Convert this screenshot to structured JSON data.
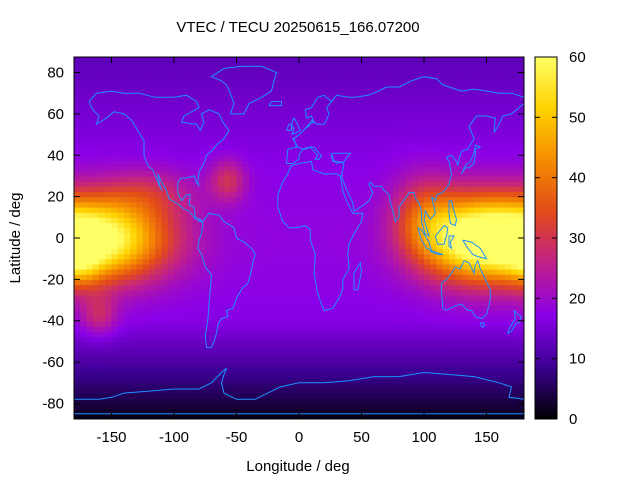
{
  "chart_data": {
    "type": "heatmap",
    "title": "VTEC / TECU 20250615_166.07200",
    "xlabel": "Longitude / deg",
    "ylabel": "Latitude / deg",
    "xlim": [
      -180,
      180
    ],
    "ylim": [
      -87.5,
      87.5
    ],
    "x_ticks": [
      -150,
      -100,
      -50,
      0,
      50,
      100,
      150
    ],
    "y_ticks": [
      -80,
      -60,
      -40,
      -20,
      0,
      20,
      40,
      60,
      80
    ],
    "colorbar": {
      "range": [
        0,
        60
      ],
      "ticks": [
        0,
        10,
        20,
        30,
        40,
        50,
        60
      ],
      "palette": [
        "#000000",
        "#3a0090",
        "#8a00e8",
        "#c0208a",
        "#e24a1a",
        "#f58c00",
        "#ffd200",
        "#ffff66"
      ]
    },
    "grid": false,
    "legend": "colorbar-right",
    "overlay": "coastlines",
    "coastline_color": "#1e90ff",
    "vtec_hotspots": [
      {
        "lon": -160,
        "lat": 0,
        "value": 44,
        "sigma_lon": 38,
        "sigma_lat": 14
      },
      {
        "lon": -175,
        "lat": -12,
        "value": 10,
        "sigma_lon": 12,
        "sigma_lat": 8
      },
      {
        "lon": -120,
        "lat": 22,
        "value": 8,
        "sigma_lon": 25,
        "sigma_lat": 8
      },
      {
        "lon": 140,
        "lat": 0,
        "value": 40,
        "sigma_lon": 30,
        "sigma_lat": 14
      },
      {
        "lon": 100,
        "lat": 10,
        "value": 14,
        "sigma_lon": 18,
        "sigma_lat": 14
      },
      {
        "lon": -57,
        "lat": 28,
        "value": 12,
        "sigma_lon": 10,
        "sigma_lat": 7
      },
      {
        "lon": -160,
        "lat": -37,
        "value": 10,
        "sigma_lon": 10,
        "sigma_lat": 7
      }
    ],
    "vtec_background": {
      "equator": 18,
      "poles": 12,
      "south_polar_min": 2
    }
  }
}
